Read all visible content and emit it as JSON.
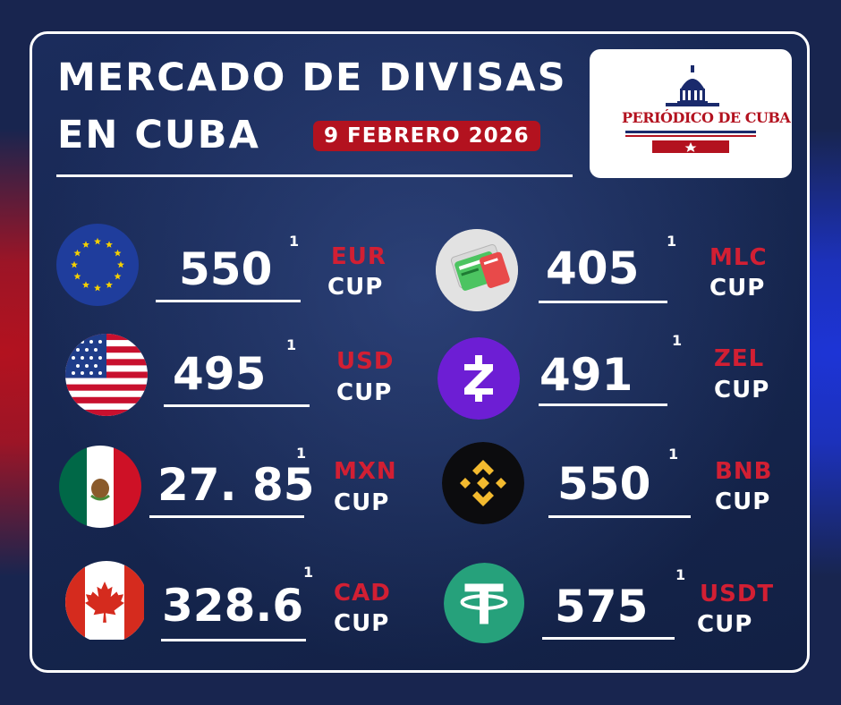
{
  "header": {
    "title_line1": "MERCADO DE DIVISAS",
    "title_line2": "EN CUBA",
    "date": "9 FEBRERO 2026",
    "logo_text": "PERIÓDICO DE CUBA"
  },
  "rates": [
    {
      "id": "eur",
      "icon": "eu-flag-icon",
      "value": "550",
      "superscript": "1",
      "code": "EUR",
      "quote": "CUP"
    },
    {
      "id": "usd",
      "icon": "us-flag-icon",
      "value": "495",
      "superscript": "1",
      "code": "USD",
      "quote": "CUP"
    },
    {
      "id": "mxn",
      "icon": "mexico-flag-icon",
      "value": "27. 85",
      "superscript": "1",
      "code": "MXN",
      "quote": "CUP"
    },
    {
      "id": "cad",
      "icon": "canada-flag-icon",
      "value": "328.6",
      "superscript": "1",
      "code": "CAD",
      "quote": "CUP"
    },
    {
      "id": "mlc",
      "icon": "mlc-cards-icon",
      "value": "405",
      "superscript": "1",
      "code": "MLC",
      "quote": "CUP"
    },
    {
      "id": "zel",
      "icon": "zelle-icon",
      "value": "491",
      "superscript": "1",
      "code": "ZEL",
      "quote": "CUP"
    },
    {
      "id": "bnb",
      "icon": "binance-icon",
      "value": "550",
      "superscript": "1",
      "code": "BNB",
      "quote": "CUP"
    },
    {
      "id": "usdt",
      "icon": "tether-icon",
      "value": "575",
      "superscript": "1",
      "code": "USDT",
      "quote": "CUP"
    }
  ],
  "colors": {
    "accent_red": "#d21f33",
    "badge_red": "#b3121f",
    "panel_navy": "#16264f",
    "zelle_purple": "#6d1ed4",
    "tether_green": "#26a17b",
    "binance_yellow": "#f3ba2f"
  }
}
